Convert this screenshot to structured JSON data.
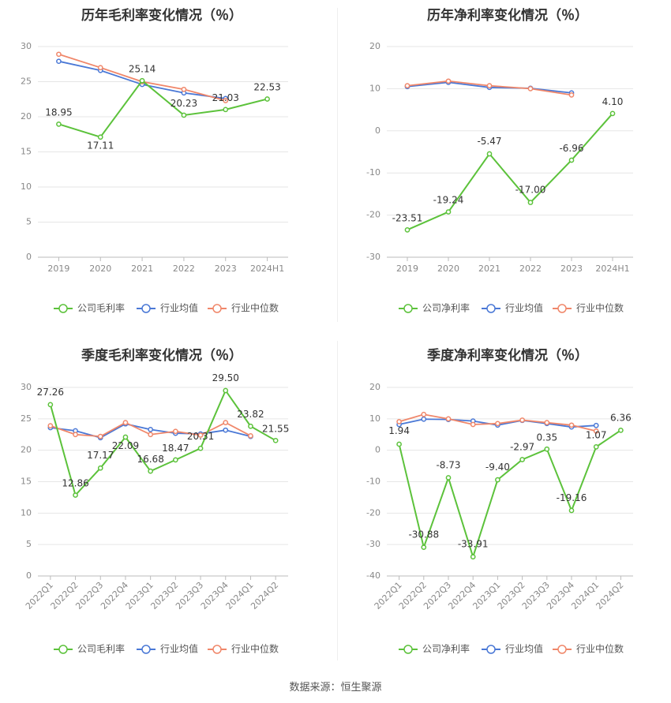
{
  "colors": {
    "company": "#5cc23b",
    "industry_avg": "#4a78d6",
    "industry_median": "#f0876a",
    "grid": "#e6e6e6",
    "axis_text": "#888888",
    "label_text": "#333333",
    "title_text": "#333333"
  },
  "source": "数据来源：恒生聚源",
  "chart_data": [
    {
      "id": "annual-gross",
      "type": "line",
      "title": "历年毛利率变化情况（％）",
      "categories": [
        "2019",
        "2020",
        "2021",
        "2022",
        "2023",
        "2024H1"
      ],
      "ylim": [
        0,
        30
      ],
      "yticks": [
        0,
        5,
        10,
        15,
        20,
        25,
        30
      ],
      "grid": true,
      "legend": "bottom",
      "series": [
        {
          "name": "公司毛利率",
          "role": "company",
          "values": [
            18.95,
            17.11,
            25.14,
            20.23,
            21.03,
            22.53
          ],
          "labels": [
            "18.95",
            "17.11",
            "25.14",
            "20.23",
            "21.03",
            "22.53"
          ]
        },
        {
          "name": "行业均值",
          "role": "industry_avg",
          "values": [
            27.9,
            26.6,
            24.6,
            23.4,
            22.6,
            null
          ]
        },
        {
          "name": "行业中位数",
          "role": "industry_median",
          "values": [
            28.9,
            27.0,
            25.0,
            23.9,
            22.3,
            null
          ]
        }
      ]
    },
    {
      "id": "annual-net",
      "type": "line",
      "title": "历年净利率变化情况（％）",
      "categories": [
        "2019",
        "2020",
        "2021",
        "2022",
        "2023",
        "2024H1"
      ],
      "ylim": [
        -30,
        20
      ],
      "yticks": [
        -30,
        -20,
        -10,
        0,
        10,
        20
      ],
      "grid": true,
      "legend": "bottom",
      "series": [
        {
          "name": "公司净利率",
          "role": "company",
          "values": [
            -23.51,
            -19.24,
            -5.47,
            -17.0,
            -6.96,
            4.1
          ],
          "labels": [
            "-23.51",
            "-19.24",
            "-5.47",
            "-17.00",
            "-6.96",
            "4.10"
          ]
        },
        {
          "name": "行业均值",
          "role": "industry_avg",
          "values": [
            10.5,
            11.5,
            10.3,
            10.1,
            9.0,
            null
          ]
        },
        {
          "name": "行业中位数",
          "role": "industry_median",
          "values": [
            10.7,
            11.8,
            10.7,
            10.0,
            8.5,
            null
          ]
        }
      ]
    },
    {
      "id": "quarterly-gross",
      "type": "line",
      "title": "季度毛利率变化情况（％）",
      "categories": [
        "2022Q1",
        "2022Q2",
        "2022Q3",
        "2022Q4",
        "2023Q1",
        "2023Q2",
        "2023Q3",
        "2023Q4",
        "2024Q1",
        "2024Q2"
      ],
      "ylim": [
        0,
        30
      ],
      "yticks": [
        0,
        5,
        10,
        15,
        20,
        25,
        30
      ],
      "grid": true,
      "legend": "bottom",
      "series": [
        {
          "name": "公司毛利率",
          "role": "company",
          "values": [
            27.26,
            12.86,
            17.17,
            22.09,
            16.68,
            18.47,
            20.31,
            29.5,
            23.82,
            21.55
          ],
          "labels": [
            "27.26",
            "12.86",
            "17.17",
            "22.09",
            "16.68",
            "18.47",
            "20.31",
            "29.50",
            "23.82",
            "21.55"
          ]
        },
        {
          "name": "行业均值",
          "role": "industry_avg",
          "values": [
            23.6,
            23.1,
            22.0,
            24.2,
            23.3,
            22.7,
            22.6,
            23.2,
            22.2,
            null
          ]
        },
        {
          "name": "行业中位数",
          "role": "industry_median",
          "values": [
            23.9,
            22.5,
            22.2,
            24.4,
            22.5,
            23.0,
            22.4,
            24.4,
            22.3,
            null
          ]
        }
      ]
    },
    {
      "id": "quarterly-net",
      "type": "line",
      "title": "季度净利率变化情况（％）",
      "categories": [
        "2022Q1",
        "2022Q2",
        "2022Q3",
        "2022Q4",
        "2023Q1",
        "2023Q2",
        "2023Q3",
        "2023Q4",
        "2024Q1",
        "2024Q2"
      ],
      "ylim": [
        -40,
        20
      ],
      "yticks": [
        -40,
        -30,
        -20,
        -10,
        0,
        10,
        20
      ],
      "grid": true,
      "legend": "bottom",
      "series": [
        {
          "name": "公司净利率",
          "role": "company",
          "values": [
            1.94,
            -30.88,
            -8.73,
            -33.91,
            -9.4,
            -2.97,
            0.35,
            -19.16,
            1.07,
            6.36
          ],
          "labels": [
            "1.94",
            "-30.88",
            "-8.73",
            "-33.91",
            "-9.40",
            "-2.97",
            "0.35",
            "-19.16",
            "1.07",
            "6.36"
          ]
        },
        {
          "name": "行业均值",
          "role": "industry_avg",
          "values": [
            8.2,
            9.9,
            9.8,
            9.3,
            8.0,
            9.5,
            8.5,
            7.4,
            7.9,
            null
          ]
        },
        {
          "name": "行业中位数",
          "role": "industry_median",
          "values": [
            9.1,
            11.4,
            10.0,
            8.2,
            8.5,
            9.6,
            8.8,
            8.0,
            6.1,
            null
          ]
        }
      ]
    }
  ]
}
